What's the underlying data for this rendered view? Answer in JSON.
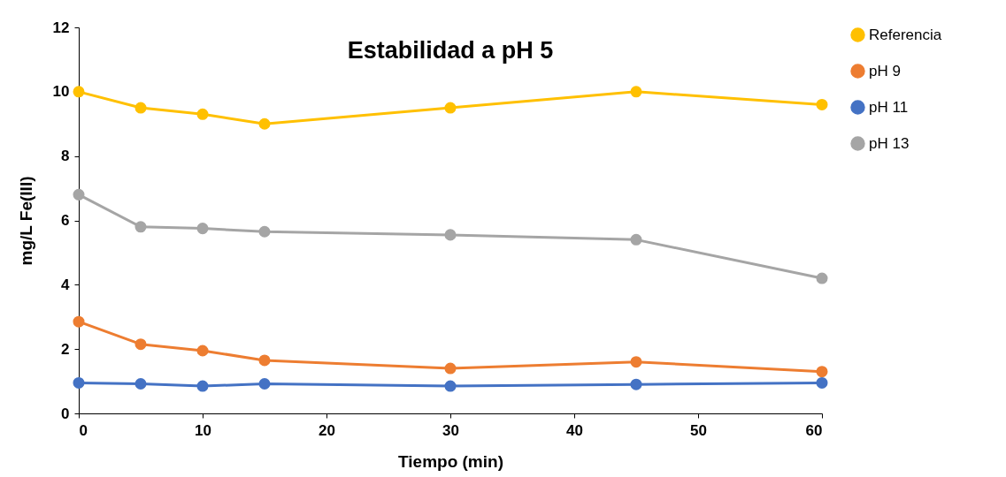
{
  "chart_data": {
    "type": "line",
    "title": "Estabilidad a pH 5",
    "xlabel": "Tiempo (min)",
    "ylabel": "mg/L Fe(III)",
    "x": [
      0,
      5,
      10,
      15,
      30,
      45,
      60
    ],
    "series": [
      {
        "name": "Referencia",
        "color": "#ffc000",
        "values": [
          10.0,
          9.5,
          9.3,
          9.0,
          9.5,
          10.0,
          9.6
        ]
      },
      {
        "name": "pH 9",
        "color": "#ed7d31",
        "values": [
          2.85,
          2.15,
          1.95,
          1.65,
          1.4,
          1.6,
          1.3
        ]
      },
      {
        "name": "pH 11",
        "color": "#4472c4",
        "values": [
          0.95,
          0.92,
          0.85,
          0.92,
          0.85,
          0.9,
          0.95
        ]
      },
      {
        "name": "pH 13",
        "color": "#a5a5a5",
        "values": [
          6.8,
          5.8,
          5.75,
          5.65,
          5.55,
          5.4,
          4.2
        ]
      }
    ],
    "xlim": [
      0,
      60
    ],
    "xticks": [
      0,
      10,
      20,
      30,
      40,
      50,
      60
    ],
    "ylim": [
      0,
      12
    ],
    "yticks": [
      0,
      2,
      4,
      6,
      8,
      10,
      12
    ],
    "grid": false,
    "legend": "right",
    "marker": "circle",
    "line_style": "solid"
  }
}
